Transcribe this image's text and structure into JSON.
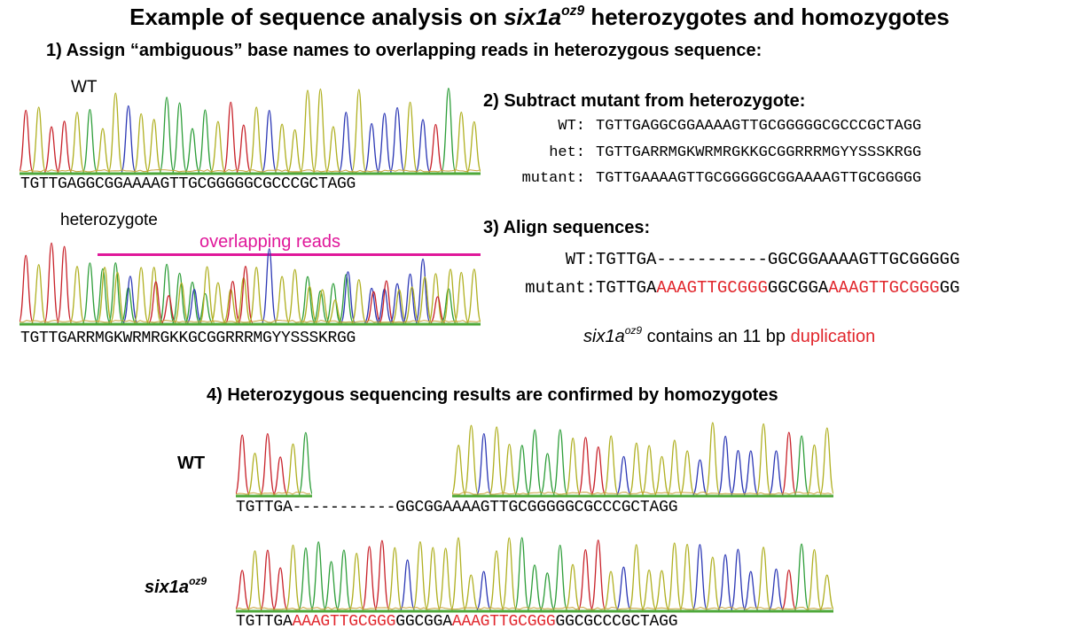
{
  "title": {
    "prefix": "Example of sequence analysis on ",
    "gene": "six1a",
    "allele": "oz9",
    "suffix": " heterozygotes and homozygotes"
  },
  "step1": {
    "heading": "1) Assign “ambiguous”  base names to overlapping reads in heterozygous sequence:",
    "wt_label": "WT",
    "wt_sequence": "TGTTGAGGCGGAAAAGTTGCGGGGGCGCCCGCTAGG",
    "het_label": "heterozygote",
    "overlap_label": "overlapping reads",
    "het_sequence": "TGTTGARRMGKWRMRGKKGCGGRRRMGYYSSSKRGG"
  },
  "step2": {
    "heading": "2) Subtract mutant from heterozygote:",
    "rows": [
      {
        "label": "WT:",
        "sequence": "TGTTGAGGCGGAAAAGTTGCGGGGGCGCCCGCTAGG"
      },
      {
        "label": "het:",
        "sequence": "TGTTGARRMGKWRMRGKKGCGGRRRMGYYSSSKRGG"
      },
      {
        "label": "mutant:",
        "sequence": "TGTTGAAAAGTTGCGGGGGCGGAAAAGTTGCGGGGG"
      }
    ]
  },
  "step3": {
    "heading": "3)  Align  sequences:",
    "wt_label": "WT:",
    "wt_seq": {
      "a": "TGTTGA",
      "gap": "-----------",
      "b": "GGCGGAAAAGTTGCGGGGG"
    },
    "mut_label": "mutant:",
    "mut_seq": {
      "a": "TGTTGA",
      "dup1": "AAAGTTGCGGG",
      "b": "GGCGGA",
      "dup2": "AAAGTTGCGGG",
      "c": "GG"
    },
    "note": {
      "gene": "six1a",
      "allele": "oz9",
      "text": " contains an 11 bp ",
      "highlight": "duplication"
    }
  },
  "step4": {
    "heading": "4) Heterozygous sequencing results are confirmed by homozygotes",
    "wt_label": "WT",
    "wt_seq": {
      "a": "TGTTGA",
      "gap": "-----------",
      "b": "GGCGGAAAAGTTGCGGGGGCGCCCGCTAGG"
    },
    "mut_label_gene": "six1a",
    "mut_label_allele": "oz9",
    "mut_seq": {
      "a": "TGTTGA",
      "dup1": "AAAGTTGCGGG",
      "b": "GGCGGA",
      "dup2": "AAAGTTGCGGG",
      "c": "GGCGCCCGCTAGG"
    }
  },
  "colors": {
    "A": "#2e9e3a",
    "C": "#2c38b5",
    "G": "#b0b022",
    "T": "#c8222a",
    "overlap": "#e0189a",
    "baseline": "#4ea83a",
    "highlight": "#e1262c"
  }
}
